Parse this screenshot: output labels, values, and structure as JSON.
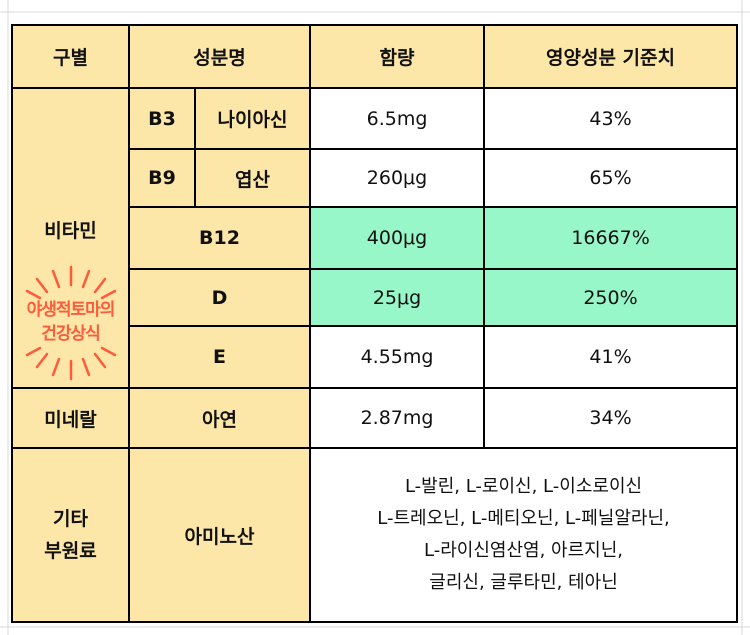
{
  "header": {
    "category": "구별",
    "ingredient": "성분명",
    "amount": "함량",
    "daily_value": "영양성분 기준치"
  },
  "vitamins": {
    "label": "비타민",
    "rows": [
      {
        "code": "B3",
        "name": "나이아신",
        "amount": "6.5mg",
        "daily_value": "43%"
      },
      {
        "code": "B9",
        "name": "엽산",
        "amount": "260μg",
        "daily_value": "65%"
      },
      {
        "name": "B12",
        "amount": "400μg",
        "daily_value": "16667%"
      },
      {
        "name": "D",
        "amount": "25μg",
        "daily_value": "250%"
      },
      {
        "name": "E",
        "amount": "4.55mg",
        "daily_value": "41%"
      }
    ]
  },
  "minerals": {
    "label": "미네랄",
    "name": "아연",
    "amount": "2.87mg",
    "daily_value": "34%"
  },
  "others": {
    "label_line1": "기타",
    "label_line2": "부원료",
    "name": "아미노산",
    "lines": [
      "L-발린, L-로이신, L-이소로이신",
      "L-트레오닌, L-메티오닌, L-페닐알라닌,",
      "L-라이신염산염, 아르지닌,",
      "글리신, 글루타민, 테아닌"
    ]
  },
  "watermark": {
    "line1": "야생적토마의",
    "line2": "건강상식"
  },
  "colors": {
    "header_fill": "#fde7a8",
    "highlight_fill": "#97f7c8",
    "watermark": "#ff5a3c"
  }
}
